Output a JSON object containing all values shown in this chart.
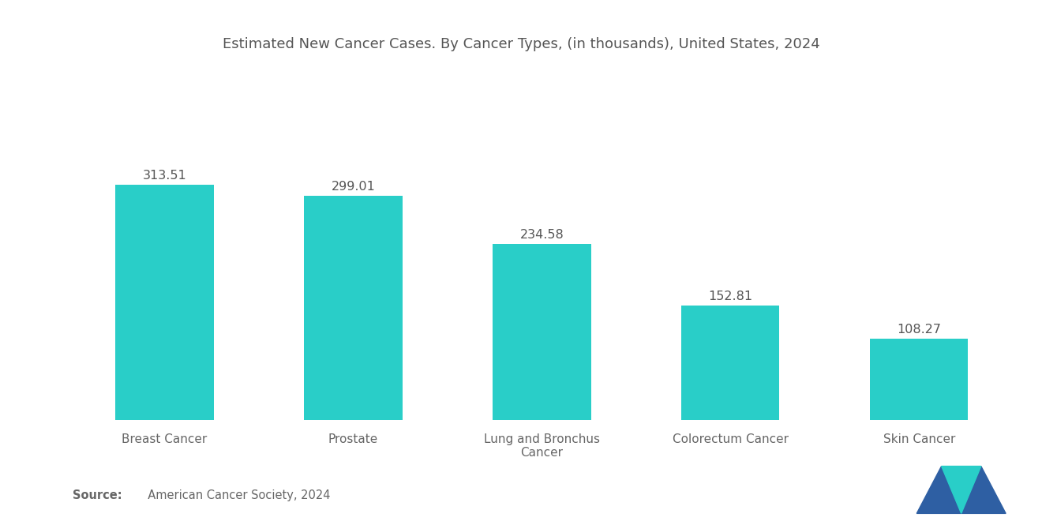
{
  "title": "Estimated New Cancer Cases. By Cancer Types, (in thousands), United States, 2024",
  "categories": [
    "Breast Cancer",
    "Prostate",
    "Lung and Bronchus\nCancer",
    "Colorectum Cancer",
    "Skin Cancer"
  ],
  "values": [
    313.51,
    299.01,
    234.58,
    152.81,
    108.27
  ],
  "bar_color": "#29CEC8",
  "background_color": "#ffffff",
  "title_color": "#555555",
  "label_color": "#666666",
  "value_color": "#555555",
  "source_bold": "Source:",
  "source_text": "  American Cancer Society, 2024",
  "title_fontsize": 13.0,
  "value_fontsize": 11.5,
  "xlabel_fontsize": 11,
  "source_fontsize": 10.5,
  "ylim": [
    0,
    420
  ],
  "bar_width": 0.52,
  "logo_color_left": "#2E5FA3",
  "logo_color_right": "#29CEC8"
}
